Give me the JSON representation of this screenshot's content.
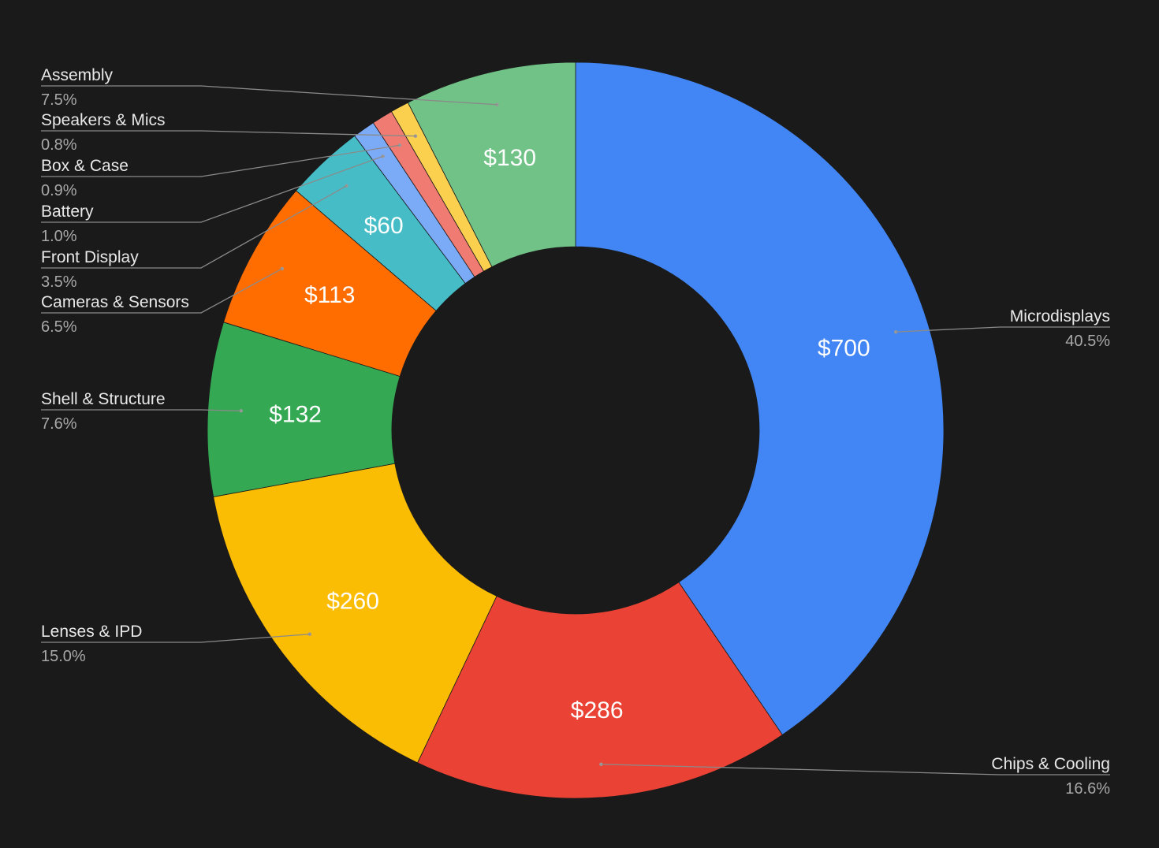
{
  "chart_data": {
    "type": "pie",
    "donut": true,
    "title": "",
    "slices": [
      {
        "label": "Microdisplays",
        "value": 700,
        "value_label": "$700",
        "percent": "40.5%",
        "color": "#4285f4"
      },
      {
        "label": "Chips & Cooling",
        "value": 286,
        "value_label": "$286",
        "percent": "16.6%",
        "color": "#ea4335"
      },
      {
        "label": "Lenses & IPD",
        "value": 260,
        "value_label": "$260",
        "percent": "15.0%",
        "color": "#fbbc04"
      },
      {
        "label": "Shell & Structure",
        "value": 132,
        "value_label": "$132",
        "percent": "7.6%",
        "color": "#34a853"
      },
      {
        "label": "Cameras & Sensors",
        "value": 113,
        "value_label": "$113",
        "percent": "6.5%",
        "color": "#ff6d01"
      },
      {
        "label": "Front Display",
        "value": 60,
        "value_label": "$60",
        "percent": "3.5%",
        "color": "#46bdc6"
      },
      {
        "label": "Battery",
        "value": 17,
        "value_label": "",
        "percent": "1.0%",
        "color": "#7baaf7"
      },
      {
        "label": "Box & Case",
        "value": 16,
        "value_label": "",
        "percent": "0.9%",
        "color": "#f07b72"
      },
      {
        "label": "Speakers & Mics",
        "value": 14,
        "value_label": "",
        "percent": "0.8%",
        "color": "#fcd04f"
      },
      {
        "label": "Assembly",
        "value": 130,
        "value_label": "$130",
        "percent": "7.5%",
        "color": "#71c287"
      }
    ],
    "background": "#1a1a1a"
  }
}
